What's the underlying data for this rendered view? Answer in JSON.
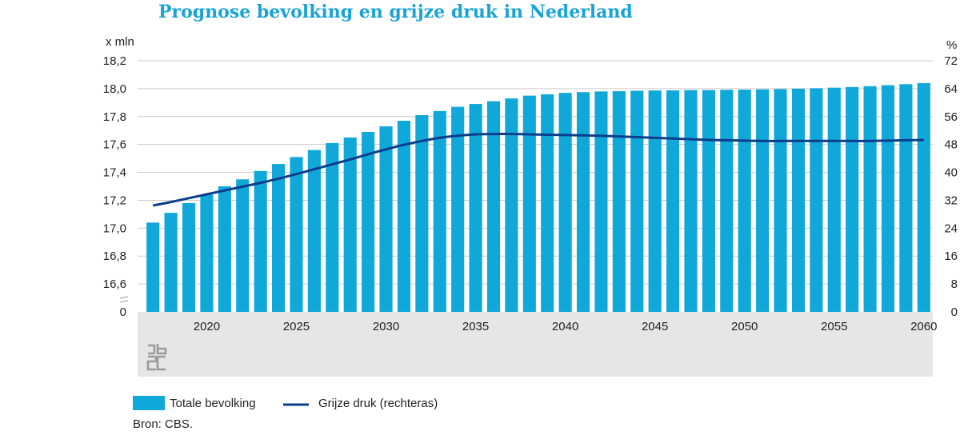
{
  "chart_data": {
    "type": "bar+line",
    "title": "Prognose bevolking en grijze druk in Nederland",
    "left_axis": {
      "unit": "x mln",
      "ticks": [
        "18,2",
        "18,0",
        "17,8",
        "17,6",
        "17,4",
        "17,2",
        "17,0",
        "16,8",
        "16,6",
        "0"
      ],
      "tick_values": [
        18.2,
        18.0,
        17.8,
        17.6,
        17.4,
        17.2,
        17.0,
        16.8,
        16.6
      ],
      "range": [
        16.4,
        18.2
      ],
      "axis_break": true
    },
    "right_axis": {
      "unit": "%",
      "ticks": [
        "72",
        "64",
        "56",
        "48",
        "40",
        "32",
        "24",
        "16",
        "8",
        "0"
      ],
      "tick_values": [
        72,
        64,
        56,
        48,
        40,
        32,
        24,
        16,
        8,
        0
      ],
      "range": [
        0,
        72
      ]
    },
    "x_ticks": [
      "2020",
      "2025",
      "2030",
      "2035",
      "2040",
      "2045",
      "2050",
      "2055",
      "2060"
    ],
    "x_tick_years": [
      2020,
      2025,
      2030,
      2035,
      2040,
      2045,
      2050,
      2055,
      2060
    ],
    "years": [
      2017,
      2018,
      2019,
      2020,
      2021,
      2022,
      2023,
      2024,
      2025,
      2026,
      2027,
      2028,
      2029,
      2030,
      2031,
      2032,
      2033,
      2034,
      2035,
      2036,
      2037,
      2038,
      2039,
      2040,
      2041,
      2042,
      2043,
      2044,
      2045,
      2046,
      2047,
      2048,
      2049,
      2050,
      2051,
      2052,
      2053,
      2054,
      2055,
      2056,
      2057,
      2058,
      2059,
      2060
    ],
    "series": [
      {
        "name": "Totale bevolking",
        "axis": "left",
        "type": "bar",
        "color": "#0fa8d8",
        "values": [
          17.04,
          17.11,
          17.18,
          17.24,
          17.3,
          17.35,
          17.41,
          17.46,
          17.51,
          17.56,
          17.61,
          17.65,
          17.69,
          17.73,
          17.77,
          17.81,
          17.84,
          17.87,
          17.89,
          17.91,
          17.93,
          17.95,
          17.96,
          17.97,
          17.975,
          17.98,
          17.982,
          17.985,
          17.987,
          17.988,
          17.99,
          17.99,
          17.992,
          17.993,
          17.995,
          17.997,
          18.0,
          18.003,
          18.007,
          18.012,
          18.018,
          18.025,
          18.032,
          18.04
        ]
      },
      {
        "name": "Grijze druk (rechteras)",
        "axis": "right",
        "type": "line",
        "color": "#0b3d8c",
        "values": [
          30.5,
          31.5,
          32.6,
          33.7,
          34.8,
          35.9,
          37.0,
          38.2,
          39.5,
          40.9,
          42.3,
          43.7,
          45.2,
          46.6,
          47.9,
          49.0,
          49.9,
          50.5,
          50.9,
          51.0,
          51.0,
          50.9,
          50.8,
          50.7,
          50.6,
          50.5,
          50.3,
          50.1,
          49.9,
          49.7,
          49.5,
          49.3,
          49.2,
          49.1,
          49.0,
          49.0,
          49.0,
          49.0,
          49.0,
          49.0,
          49.0,
          49.1,
          49.2,
          49.3
        ]
      }
    ]
  },
  "legend": {
    "bar_label": "Totale bevolking",
    "line_label": "Grijze druk (rechteras)"
  },
  "source": "Bron: CBS.",
  "logo_text": "cbs",
  "colors": {
    "title": "#1aa3d6",
    "bar": "#0fa8d8",
    "line": "#0b3d8c",
    "footer_band": "#e6e6e6",
    "grid": "#cccccc"
  }
}
